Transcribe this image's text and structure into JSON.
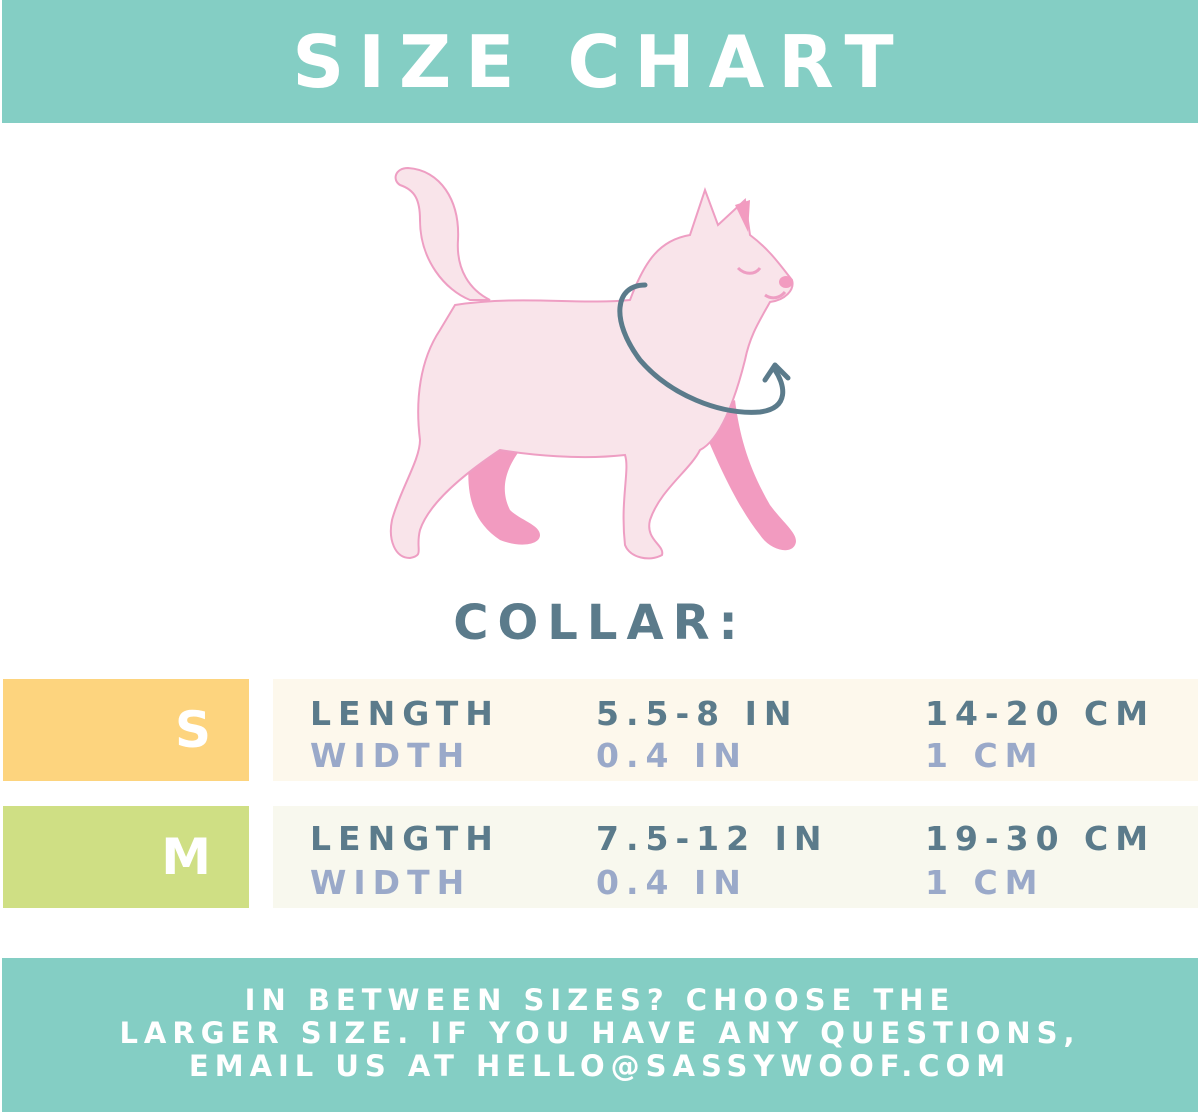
{
  "header": {
    "title": "SIZE CHART"
  },
  "illustration": {
    "icon": "cat-collar-measure-illustration"
  },
  "section_title": "COLLAR:",
  "sizes": [
    {
      "label": "S",
      "color": "#fdd47e",
      "row_bg": "#fdf8ec",
      "length_label": "LENGTH",
      "length_in": "5.5-8 IN",
      "length_cm": "14-20 CM",
      "width_label": "WIDTH",
      "width_in": "0.4 IN",
      "width_cm": "1 CM"
    },
    {
      "label": "M",
      "color": "#cfdf84",
      "row_bg": "#f8f8ee",
      "length_label": "LENGTH",
      "length_in": "7.5-12 IN",
      "length_cm": "19-30 CM",
      "width_label": "WIDTH",
      "width_in": "0.4 IN",
      "width_cm": "1 CM"
    }
  ],
  "footer": {
    "lines": [
      "IN BETWEEN SIZES? CHOOSE THE",
      "LARGER SIZE. IF YOU HAVE ANY QUESTIONS,",
      "EMAIL US AT HELLO@SASSYWOOF.COM"
    ]
  },
  "colors": {
    "teal": "#84cec4",
    "dark_text": "#5b7b8b",
    "light_text": "#9aa9c9",
    "cat_pink": "#f9e4ea",
    "cat_dark_pink": "#f29bc0",
    "measure_line": "#5b7b8b"
  }
}
